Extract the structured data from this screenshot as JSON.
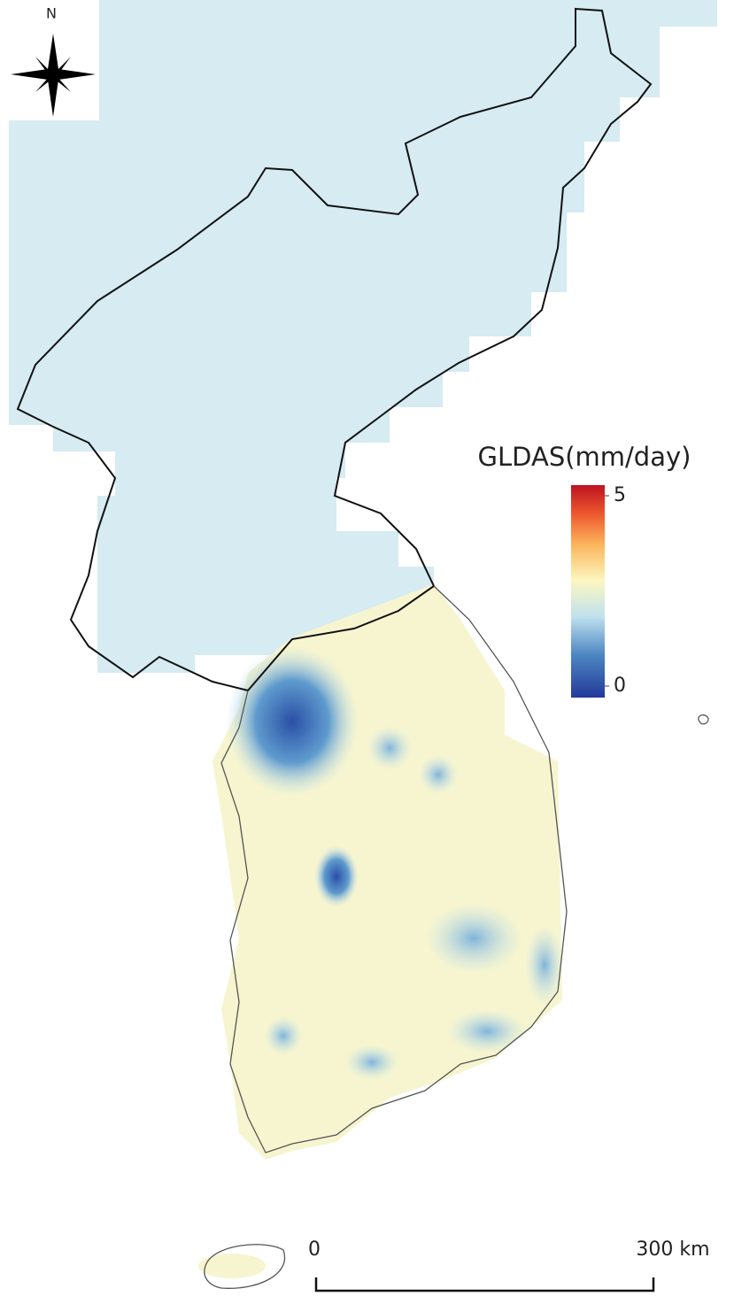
{
  "north_label": "N",
  "legend": {
    "title": "GLDAS(mm/day)",
    "range": [
      0,
      5
    ],
    "ticks": [
      0,
      5
    ]
  },
  "scale_bar": {
    "start": "0",
    "end": "300 km"
  }
}
